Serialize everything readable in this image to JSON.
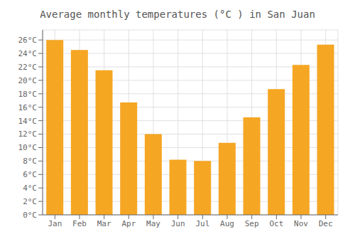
{
  "chart_data": {
    "type": "bar",
    "title": "Average monthly temperatures (°C ) in San Juan",
    "categories": [
      "Jan",
      "Feb",
      "Mar",
      "Apr",
      "May",
      "Jun",
      "Jul",
      "Aug",
      "Sep",
      "Oct",
      "Nov",
      "Dec"
    ],
    "values": [
      26,
      24.5,
      21.5,
      16.7,
      12,
      8.2,
      8.0,
      10.7,
      14.5,
      18.7,
      22.3,
      25.3
    ],
    "color": "#F5A623",
    "ylim": [
      0,
      27.5
    ],
    "yticks": [
      {
        "value": 0,
        "label": "0°C"
      },
      {
        "value": 2,
        "label": "2°C"
      },
      {
        "value": 4,
        "label": "4°C"
      },
      {
        "value": 6,
        "label": "6°C"
      },
      {
        "value": 8,
        "label": "8°C"
      },
      {
        "value": 10,
        "label": "10°C"
      },
      {
        "value": 12,
        "label": "12°C"
      },
      {
        "value": 14,
        "label": "14°C"
      },
      {
        "value": 16,
        "label": "16°C"
      },
      {
        "value": 18,
        "label": "18°C"
      },
      {
        "value": 20,
        "label": "20°C"
      },
      {
        "value": 22,
        "label": "22°C"
      },
      {
        "value": 24,
        "label": "24°C"
      },
      {
        "value": 26,
        "label": "26°C"
      }
    ],
    "grid": true
  }
}
